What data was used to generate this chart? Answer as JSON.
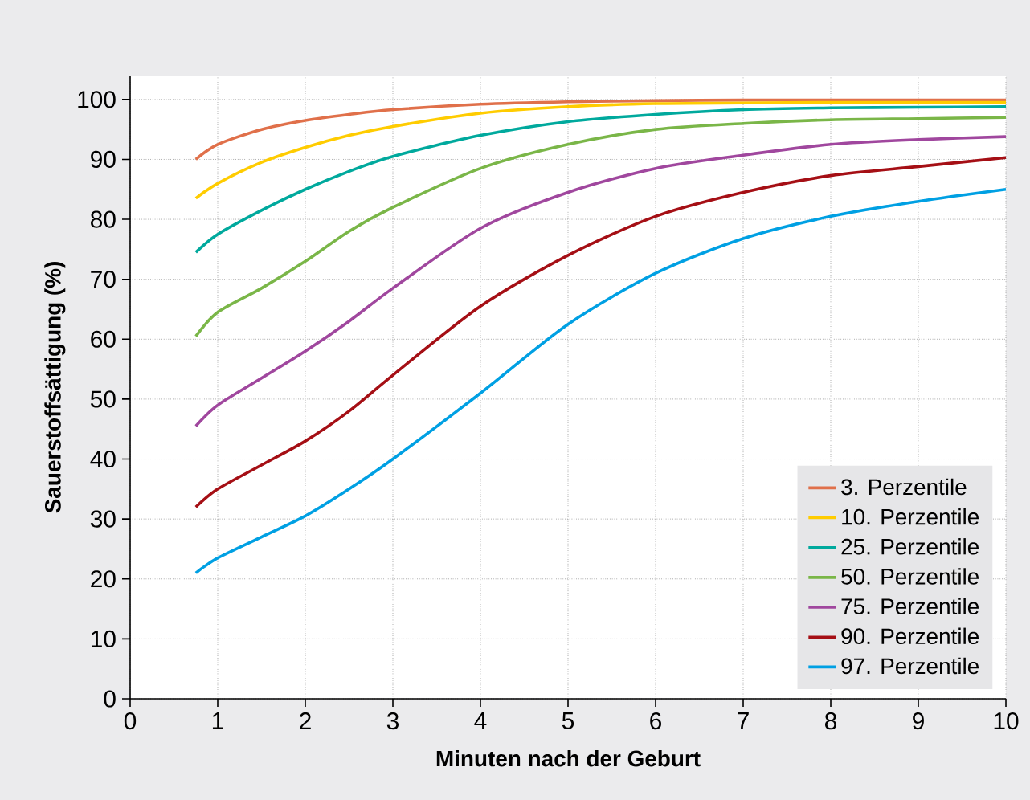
{
  "chart_data": {
    "type": "line",
    "xlabel": "Minuten nach der Geburt",
    "ylabel": "Sauerstoffsättigung (%)",
    "x": [
      0.75,
      1,
      1.5,
      2,
      2.5,
      3,
      4,
      5,
      6,
      7,
      8,
      9,
      10
    ],
    "series": [
      {
        "name": "3. Perzentile",
        "color": "#e0704a",
        "values": [
          90,
          92.5,
          95,
          96.5,
          97.5,
          98.3,
          99.2,
          99.6,
          99.8,
          99.9,
          99.9,
          99.9,
          99.9
        ]
      },
      {
        "name": "10. Perzentile",
        "color": "#ffcc00",
        "values": [
          83.5,
          86,
          89.5,
          92,
          94,
          95.5,
          97.7,
          98.8,
          99.3,
          99.4,
          99.5,
          99.5,
          99.5
        ]
      },
      {
        "name": "25. Perzentile",
        "color": "#00a99d",
        "values": [
          74.5,
          77.5,
          81.5,
          85,
          88,
          90.5,
          94,
          96.3,
          97.5,
          98.3,
          98.6,
          98.7,
          98.8
        ]
      },
      {
        "name": "50. Perzentile",
        "color": "#7ab648",
        "values": [
          60.5,
          64.5,
          68.5,
          73,
          78,
          82,
          88.5,
          92.5,
          95,
          96,
          96.6,
          96.8,
          97
        ]
      },
      {
        "name": "75. Perzentile",
        "color": "#a0479e",
        "values": [
          45.5,
          49,
          53.5,
          58,
          63,
          68.5,
          78.5,
          84.5,
          88.5,
          90.7,
          92.5,
          93.3,
          93.8
        ]
      },
      {
        "name": "90. Perzentile",
        "color": "#a50f15",
        "values": [
          32,
          35,
          39,
          43,
          48,
          54,
          65.5,
          74,
          80.5,
          84.5,
          87.3,
          88.8,
          90.3
        ]
      },
      {
        "name": "97. Perzentile",
        "color": "#00a0e3",
        "values": [
          21,
          23.5,
          27,
          30.5,
          35,
          40,
          51,
          62.5,
          71,
          76.8,
          80.5,
          83,
          85
        ]
      }
    ],
    "xlim": [
      0,
      10
    ],
    "ylim": [
      0,
      104
    ],
    "xticks": [
      0,
      1,
      2,
      3,
      4,
      5,
      6,
      7,
      8,
      9,
      10
    ],
    "yticks": [
      0,
      10,
      20,
      30,
      40,
      50,
      60,
      70,
      80,
      90,
      100
    ],
    "grid": true,
    "legend": "bottom right"
  }
}
